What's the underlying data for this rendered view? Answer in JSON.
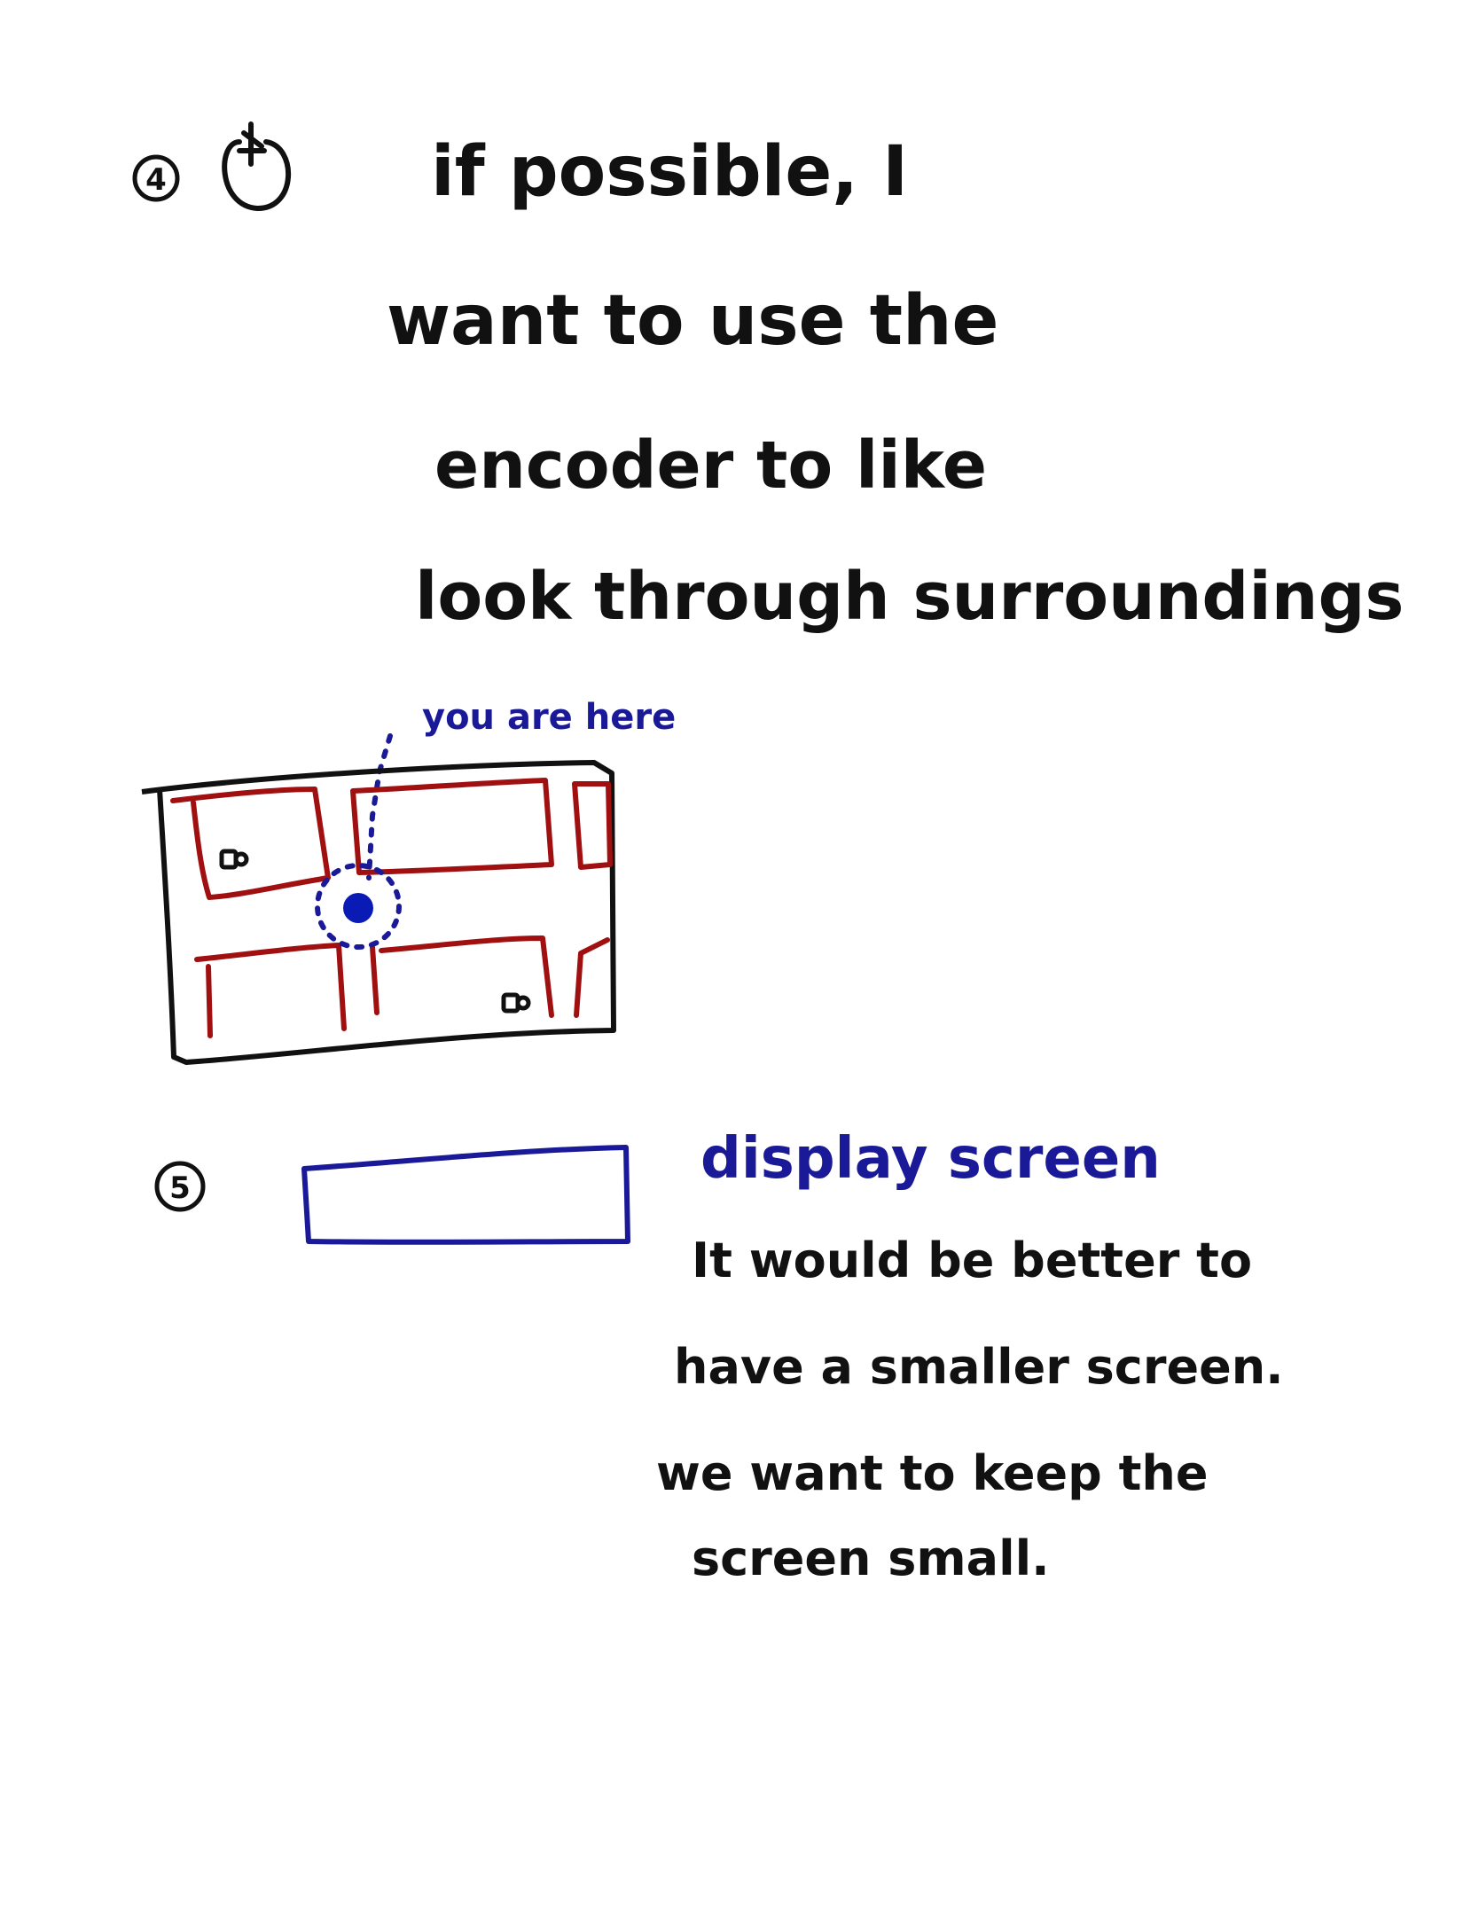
{
  "note4": {
    "number": "4",
    "lines": [
      "if possible, I",
      "want to use the",
      "encoder to like",
      "look through surroundings"
    ]
  },
  "map": {
    "marker_label": "you are here"
  },
  "note5": {
    "number": "5",
    "screen_label": "display screen",
    "lines": [
      "It would be better to",
      "have a smaller screen.",
      "we want to keep the",
      "screen small."
    ]
  },
  "colors": {
    "ink": "#111111",
    "blue": "#1a1a99",
    "red": "#a01010",
    "dot": "#0a1bb5",
    "background": "#ffffff"
  }
}
